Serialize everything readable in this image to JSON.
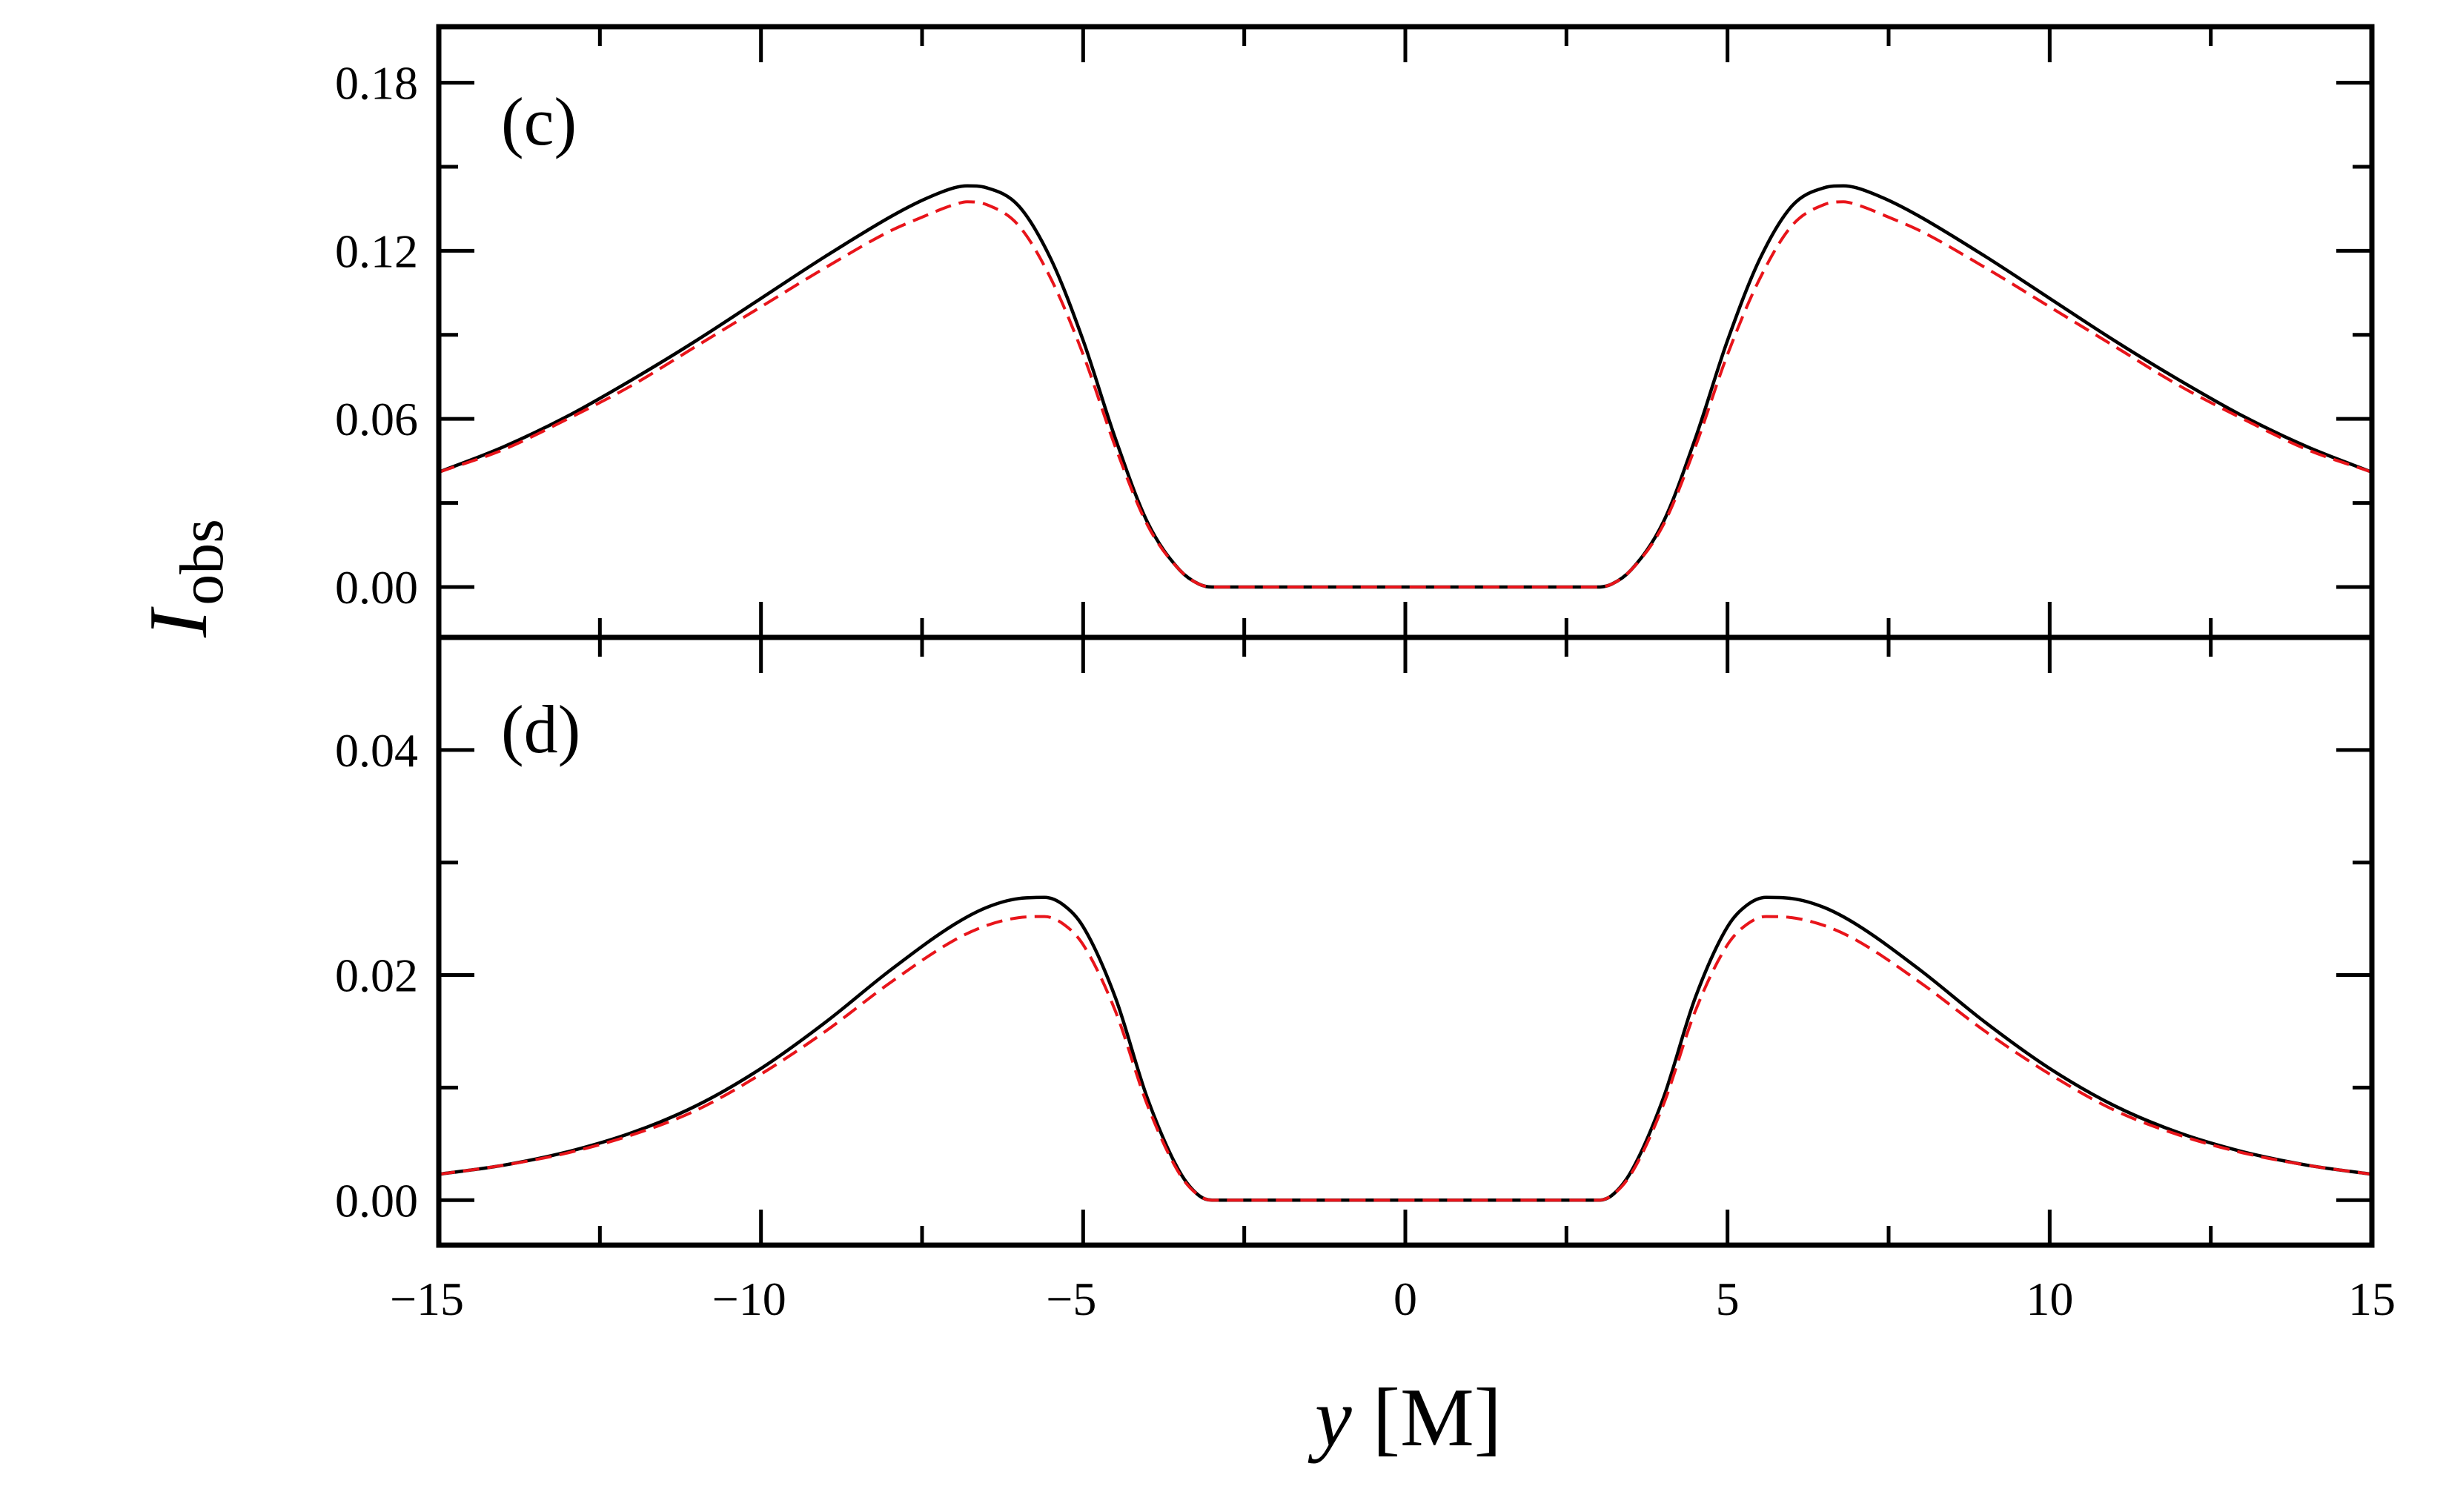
{
  "chart_data": [
    {
      "type": "line",
      "panel_label": "(c)",
      "xlim": [
        -15,
        15
      ],
      "ylim": [
        -0.018,
        0.2
      ],
      "x_ticks": [
        -15,
        -10,
        -5,
        0,
        5,
        10,
        15
      ],
      "y_ticks": [
        "0.00",
        "0.06",
        "0.12",
        "0.18"
      ],
      "xlabel": "",
      "grid": false,
      "legend": "none",
      "series": [
        {
          "color": "#000000",
          "style": "solid",
          "x": [
            -15,
            -14,
            -13,
            -12,
            -11,
            -10,
            -9,
            -8,
            -7.5,
            -7,
            -6.8,
            -6.5,
            -6,
            -5.5,
            -5,
            -4.5,
            -4,
            -3.5,
            -3.2,
            -3,
            0,
            3,
            3.2,
            3.5,
            4,
            4.5,
            5,
            5.5,
            6,
            6.5,
            6.8,
            7,
            7.5,
            8,
            9,
            10,
            11,
            12,
            13,
            14,
            15
          ],
          "y": [
            0.041,
            0.05,
            0.061,
            0.074,
            0.088,
            0.103,
            0.118,
            0.132,
            0.138,
            0.1425,
            0.1432,
            0.1425,
            0.136,
            0.117,
            0.088,
            0.053,
            0.023,
            0.006,
            0.001,
            0,
            0,
            0,
            0.001,
            0.006,
            0.023,
            0.053,
            0.088,
            0.117,
            0.136,
            0.1425,
            0.1432,
            0.1425,
            0.138,
            0.132,
            0.118,
            0.103,
            0.088,
            0.074,
            0.061,
            0.05,
            0.041
          ]
        },
        {
          "color": "#e8141a",
          "style": "dashed",
          "x": [
            -15,
            -14,
            -13,
            -12,
            -11,
            -10,
            -9,
            -8,
            -7.5,
            -7,
            -6.8,
            -6.5,
            -6,
            -5.5,
            -5,
            -4.5,
            -4,
            -3.5,
            -3.2,
            -3,
            0,
            3,
            3.2,
            3.5,
            4,
            4.5,
            5,
            5.5,
            6,
            6.5,
            6.8,
            7,
            7.5,
            8,
            9,
            10,
            11,
            12,
            13,
            14,
            15
          ],
          "y": [
            0.041,
            0.049,
            0.06,
            0.072,
            0.086,
            0.1,
            0.114,
            0.127,
            0.132,
            0.1365,
            0.1375,
            0.1365,
            0.129,
            0.11,
            0.083,
            0.05,
            0.022,
            0.006,
            0.001,
            0,
            0,
            0,
            0.001,
            0.006,
            0.022,
            0.05,
            0.083,
            0.11,
            0.129,
            0.1365,
            0.1375,
            0.1365,
            0.132,
            0.127,
            0.114,
            0.1,
            0.086,
            0.072,
            0.06,
            0.049,
            0.041
          ]
        }
      ]
    },
    {
      "type": "line",
      "panel_label": "(d)",
      "xlim": [
        -15,
        15
      ],
      "ylim": [
        -0.004,
        0.05
      ],
      "x_ticks": [
        -15,
        -10,
        -5,
        0,
        5,
        10,
        15
      ],
      "y_ticks": [
        "0.00",
        "0.02",
        "0.04"
      ],
      "xlabel": "y [M]",
      "grid": false,
      "legend": "none",
      "series": [
        {
          "color": "#000000",
          "style": "solid",
          "x": [
            -15,
            -14,
            -13,
            -12,
            -11,
            -10,
            -9,
            -8,
            -7,
            -6.5,
            -6,
            -5.6,
            -5.3,
            -5,
            -4.5,
            -4,
            -3.5,
            -3.2,
            -3,
            0,
            3,
            3.2,
            3.5,
            4,
            4.5,
            5,
            5.3,
            5.6,
            6,
            6.5,
            7,
            8,
            9,
            10,
            11,
            12,
            13,
            14,
            15
          ],
          "y": [
            0.0023,
            0.0031,
            0.0043,
            0.006,
            0.0084,
            0.0117,
            0.0158,
            0.0204,
            0.0245,
            0.026,
            0.0268,
            0.0269,
            0.0262,
            0.0243,
            0.018,
            0.009,
            0.0025,
            0.0004,
            0,
            0,
            0,
            0.0004,
            0.0025,
            0.009,
            0.018,
            0.0243,
            0.0262,
            0.0269,
            0.0268,
            0.026,
            0.0245,
            0.0204,
            0.0158,
            0.0117,
            0.0084,
            0.006,
            0.0043,
            0.0031,
            0.0023
          ]
        },
        {
          "color": "#e8141a",
          "style": "dashed",
          "x": [
            -15,
            -14,
            -13,
            -12,
            -11,
            -10,
            -9,
            -8,
            -7,
            -6.5,
            -6,
            -5.6,
            -5.3,
            -5,
            -4.5,
            -4,
            -3.5,
            -3.2,
            -3,
            0,
            3,
            3.2,
            3.5,
            4,
            4.5,
            5,
            5.3,
            5.6,
            6,
            6.5,
            7,
            8,
            9,
            10,
            11,
            12,
            13,
            14,
            15
          ],
          "y": [
            0.0023,
            0.0031,
            0.0042,
            0.0058,
            0.008,
            0.0112,
            0.015,
            0.0193,
            0.0231,
            0.0244,
            0.0251,
            0.0252,
            0.0245,
            0.0227,
            0.0168,
            0.0084,
            0.0023,
            0.0004,
            0,
            0,
            0,
            0.0004,
            0.0023,
            0.0084,
            0.0168,
            0.0227,
            0.0245,
            0.0252,
            0.0251,
            0.0244,
            0.0231,
            0.0193,
            0.015,
            0.0112,
            0.008,
            0.0058,
            0.0042,
            0.0031,
            0.0023
          ]
        }
      ]
    }
  ],
  "axes_text": {
    "ylabel_main": "I",
    "ylabel_sub": "obs",
    "xlabel_var": "y",
    "xlabel_unit": " [M]"
  },
  "colors": {
    "axis": "#000000",
    "series_solid": "#000000",
    "series_dashed": "#e8141a"
  }
}
